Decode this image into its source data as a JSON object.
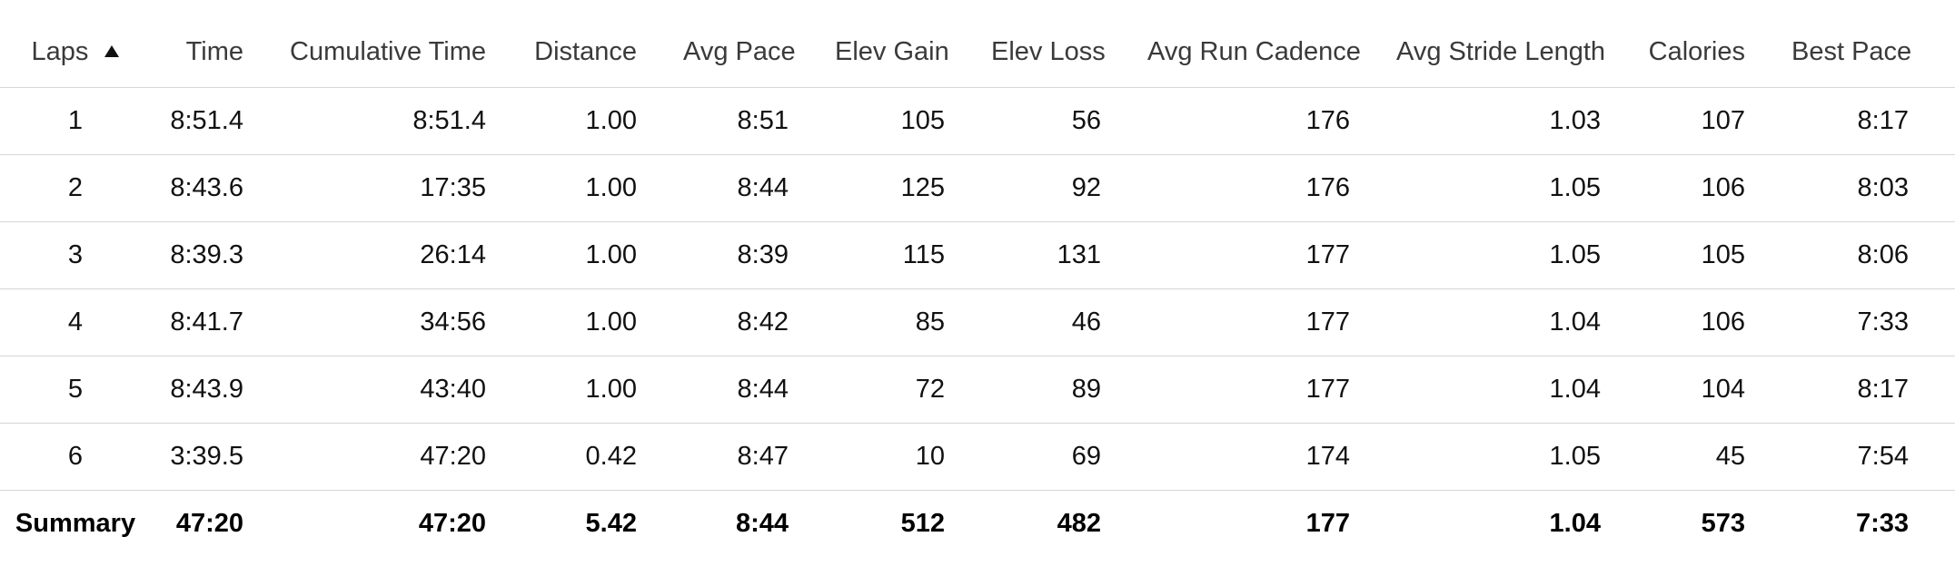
{
  "table": {
    "columns": [
      "Laps",
      "Time",
      "Cumulative Time",
      "Distance",
      "Avg Pace",
      "Elev Gain",
      "Elev Loss",
      "Avg Run Cadence",
      "Avg Stride Length",
      "Calories",
      "Best Pace"
    ],
    "sort": {
      "column": "Laps",
      "direction": "ascending",
      "icon": "sort-ascending-icon"
    },
    "rows": [
      [
        "1",
        "8:51.4",
        "8:51.4",
        "1.00",
        "8:51",
        "105",
        "56",
        "176",
        "1.03",
        "107",
        "8:17"
      ],
      [
        "2",
        "8:43.6",
        "17:35",
        "1.00",
        "8:44",
        "125",
        "92",
        "176",
        "1.05",
        "106",
        "8:03"
      ],
      [
        "3",
        "8:39.3",
        "26:14",
        "1.00",
        "8:39",
        "115",
        "131",
        "177",
        "1.05",
        "105",
        "8:06"
      ],
      [
        "4",
        "8:41.7",
        "34:56",
        "1.00",
        "8:42",
        "85",
        "46",
        "177",
        "1.04",
        "106",
        "7:33"
      ],
      [
        "5",
        "8:43.9",
        "43:40",
        "1.00",
        "8:44",
        "72",
        "89",
        "177",
        "1.04",
        "104",
        "8:17"
      ],
      [
        "6",
        "3:39.5",
        "47:20",
        "0.42",
        "8:47",
        "10",
        "69",
        "174",
        "1.05",
        "45",
        "7:54"
      ]
    ],
    "summary": [
      "Summary",
      "47:20",
      "47:20",
      "5.42",
      "8:44",
      "512",
      "482",
      "177",
      "1.04",
      "573",
      "7:33"
    ]
  }
}
